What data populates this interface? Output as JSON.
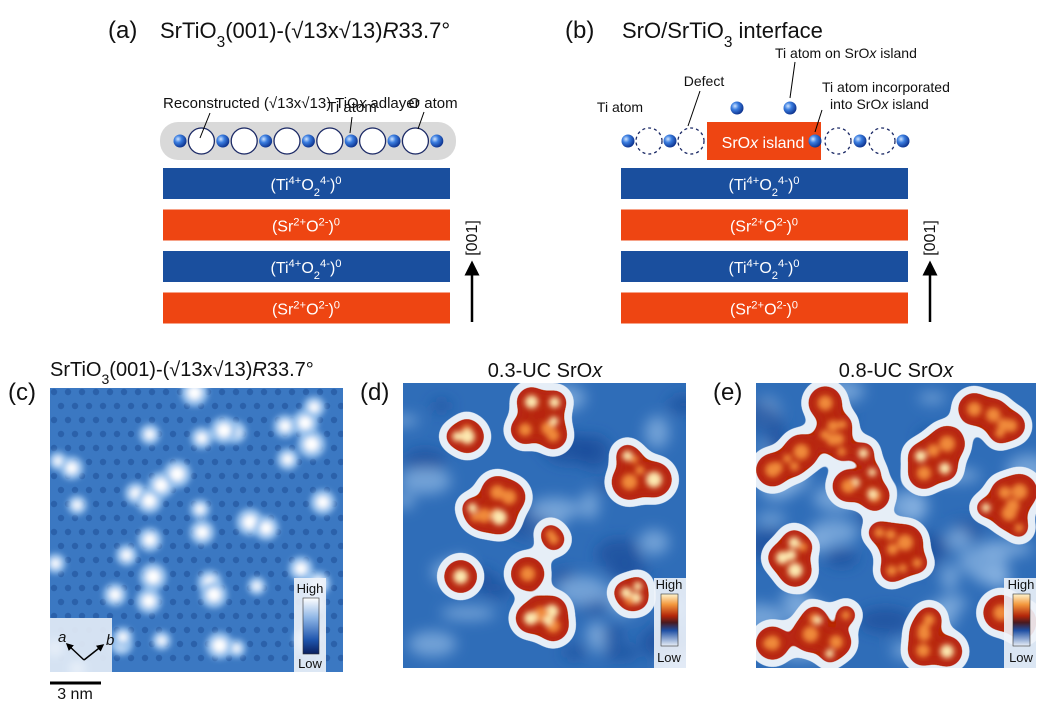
{
  "panel_a": {
    "label": "(a)",
    "title": [
      "SrTiO",
      {
        "sub": "3"
      },
      "(001)-(√13x√13)",
      {
        "i": "R"
      },
      "33.7°"
    ],
    "adlayer_label": [
      "Reconstructed (√13x√13) TiO",
      {
        "i": "x"
      },
      " adlayer"
    ],
    "ti_atom_label": [
      "Ti atom"
    ],
    "o_atom_label": [
      "O atom"
    ],
    "layers": [
      {
        "text": [
          "(Ti",
          {
            "sup": "4+"
          },
          "O",
          {
            "sub": "2"
          },
          {
            "sup": "4-"
          },
          ")",
          {
            "sup": "0"
          }
        ],
        "color": "#1a4f9e"
      },
      {
        "text": [
          "(Sr",
          {
            "sup": "2+"
          },
          "O",
          {
            "sup": "2-"
          },
          ")",
          {
            "sup": "0"
          }
        ],
        "color": "#ee4512"
      },
      {
        "text": [
          "(Ti",
          {
            "sup": "4+"
          },
          "O",
          {
            "sub": "2"
          },
          {
            "sup": "4-"
          },
          ")",
          {
            "sup": "0"
          }
        ],
        "color": "#1a4f9e"
      },
      {
        "text": [
          "(Sr",
          {
            "sup": "2+"
          },
          "O",
          {
            "sup": "2-"
          },
          ")",
          {
            "sup": "0"
          }
        ],
        "color": "#ee4512"
      }
    ],
    "direction": [
      "[001]"
    ]
  },
  "panel_b": {
    "label": "(b)",
    "title": [
      "SrO/SrTiO",
      {
        "sub": "3"
      },
      " interface"
    ],
    "ti_atom_label": [
      "Ti atom"
    ],
    "defect_label": [
      "Defect"
    ],
    "ti_on_island_label": [
      "Ti atom on SrO",
      {
        "i": "x"
      },
      " island"
    ],
    "ti_incorporated_label": [
      [
        "Ti atom incorporated"
      ],
      [
        "into SrO",
        {
          "i": "x"
        },
        " island"
      ]
    ],
    "island_label": [
      "SrO",
      {
        "i": "x"
      },
      " island"
    ],
    "layers": [
      {
        "text": [
          "(Ti",
          {
            "sup": "4+"
          },
          "O",
          {
            "sub": "2"
          },
          {
            "sup": "4-"
          },
          ")",
          {
            "sup": "0"
          }
        ],
        "color": "#1a4f9e"
      },
      {
        "text": [
          "(Sr",
          {
            "sup": "2+"
          },
          "O",
          {
            "sup": "2-"
          },
          ")",
          {
            "sup": "0"
          }
        ],
        "color": "#ee4512"
      },
      {
        "text": [
          "(Ti",
          {
            "sup": "4+"
          },
          "O",
          {
            "sub": "2"
          },
          {
            "sup": "4-"
          },
          ")",
          {
            "sup": "0"
          }
        ],
        "color": "#1a4f9e"
      },
      {
        "text": [
          "(Sr",
          {
            "sup": "2+"
          },
          "O",
          {
            "sup": "2-"
          },
          ")",
          {
            "sup": "0"
          }
        ],
        "color": "#ee4512"
      }
    ],
    "direction": [
      "[001]"
    ]
  },
  "panel_c": {
    "label": "(c)",
    "title": [
      "SrTiO",
      {
        "sub": "3"
      },
      "(001)-(√13x√13)",
      {
        "i": "R"
      },
      "33.7°"
    ],
    "colorbar_high": [
      "High"
    ],
    "colorbar_low": [
      "Low"
    ],
    "axis_a": [
      {
        "i": "a"
      }
    ],
    "axis_b": [
      {
        "i": "b"
      }
    ],
    "scale_bar": [
      "3 nm"
    ]
  },
  "panel_d": {
    "label": "(d)",
    "title": [
      "0.3-UC SrO",
      {
        "i": "x"
      }
    ],
    "colorbar_high": [
      "High"
    ],
    "colorbar_low": [
      "Low"
    ]
  },
  "panel_e": {
    "label": "(e)",
    "title": [
      "0.8-UC SrO",
      {
        "i": "x"
      }
    ],
    "colorbar_high": [
      "High"
    ],
    "colorbar_low": [
      "Low"
    ]
  }
}
